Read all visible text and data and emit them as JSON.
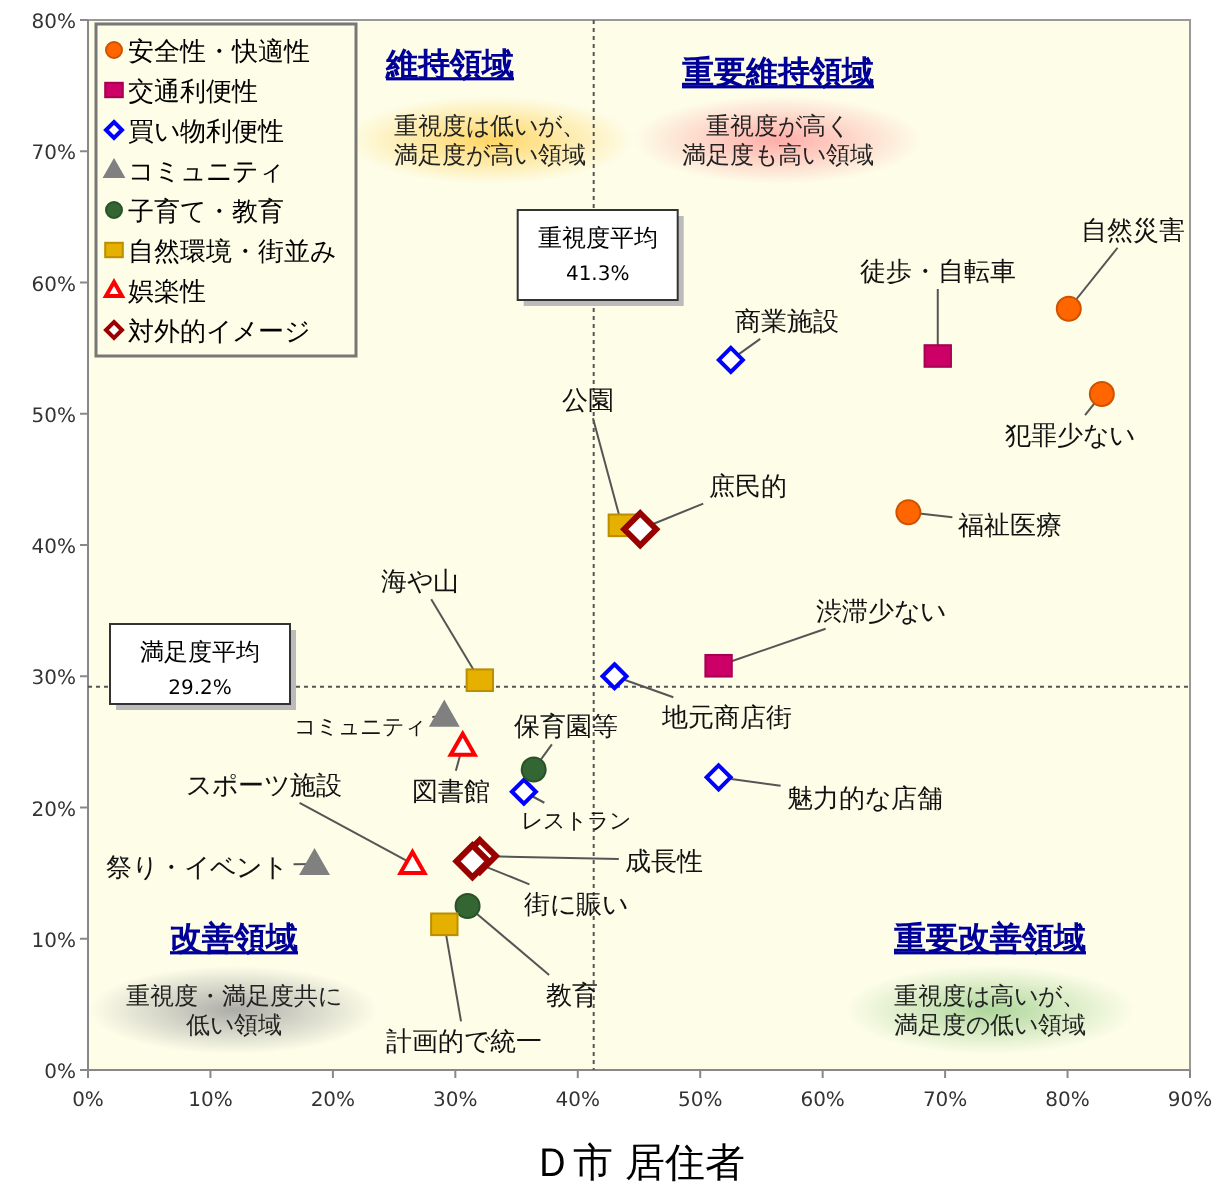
{
  "chart_data": {
    "type": "scatter",
    "xlabel": "Ｄ市 居住者",
    "xlim": [
      0,
      90
    ],
    "ylim": [
      0,
      80
    ],
    "xticks": [
      {
        "value": 0,
        "label": "0%"
      },
      {
        "value": 10,
        "label": "10%"
      },
      {
        "value": 20,
        "label": "20%"
      },
      {
        "value": 30,
        "label": "30%"
      },
      {
        "value": 40,
        "label": "40%"
      },
      {
        "value": 50,
        "label": "50%"
      },
      {
        "value": 60,
        "label": "60%"
      },
      {
        "value": 70,
        "label": "70%"
      },
      {
        "value": 80,
        "label": "80%"
      },
      {
        "value": 90,
        "label": "90%"
      }
    ],
    "yticks": [
      {
        "value": 0,
        "label": "0%"
      },
      {
        "value": 10,
        "label": "10%"
      },
      {
        "value": 20,
        "label": "20%"
      },
      {
        "value": 30,
        "label": "30%"
      },
      {
        "value": 40,
        "label": "40%"
      },
      {
        "value": 50,
        "label": "50%"
      },
      {
        "value": 60,
        "label": "60%"
      },
      {
        "value": 70,
        "label": "70%"
      },
      {
        "value": 80,
        "label": "80%"
      }
    ],
    "grid": false,
    "legend": "top left",
    "series": [
      {
        "name": "安全性・快適性",
        "color": "#ff6600",
        "marker": "circle",
        "x": [
          80.1,
          82.8,
          67.0
        ],
        "values": [
          58.0,
          51.5,
          42.5
        ]
      },
      {
        "name": "交通利便性",
        "color": "#cc0066",
        "marker": "square",
        "x": [
          69.4,
          51.5
        ],
        "values": [
          54.4,
          30.8
        ]
      },
      {
        "name": "買い物利便性",
        "color": "#0000ff",
        "marker": "diamond",
        "x": [
          52.5,
          43.0,
          51.5,
          35.6
        ],
        "values": [
          54.1,
          30.0,
          22.3,
          21.2
        ]
      },
      {
        "name": "コミュニティ",
        "color": "#808080",
        "marker": "triangle",
        "x": [
          29.1,
          18.5
        ],
        "values": [
          27.0,
          15.7
        ]
      },
      {
        "name": "子育て・教育",
        "color": "#336633",
        "marker": "circle",
        "x": [
          36.4,
          31.0
        ],
        "values": [
          22.9,
          12.5
        ]
      },
      {
        "name": "自然環境・街並み",
        "color": "#e6b000",
        "marker": "square",
        "x": [
          43.6,
          32.0,
          29.1
        ],
        "values": [
          41.5,
          29.7,
          11.1
        ]
      },
      {
        "name": "娯楽性",
        "color": "#ff0000",
        "marker": "triangle",
        "x": [
          30.6,
          26.5
        ],
        "values": [
          24.7,
          15.7
        ]
      },
      {
        "name": "対外的イメージ",
        "color": "#990000",
        "marker": "diamond",
        "x": [
          45.1,
          32.0,
          31.4
        ],
        "values": [
          41.2,
          16.3,
          15.9
        ]
      }
    ],
    "ref_lines": [
      {
        "axis": "x",
        "value": 41.3,
        "label": "重視度平均\n41.3%",
        "line_style": "dotted"
      },
      {
        "axis": "y",
        "value": 29.2,
        "label": "満足度平均\n29.2%",
        "line_style": "dotted"
      }
    ],
    "annotations": [
      {
        "text": "自然災害",
        "x": 80.1,
        "y": 58.0
      },
      {
        "text": "犯罪少ない",
        "x": 82.8,
        "y": 51.5
      },
      {
        "text": "福祉医療",
        "x": 67.0,
        "y": 42.5
      },
      {
        "text": "徒歩・自転車",
        "x": 69.4,
        "y": 54.4
      },
      {
        "text": "渋滞少ない",
        "x": 51.5,
        "y": 30.8
      },
      {
        "text": "商業施設",
        "x": 52.5,
        "y": 54.1
      },
      {
        "text": "地元商店街",
        "x": 43.0,
        "y": 30.0
      },
      {
        "text": "魅力的な店舗",
        "x": 51.5,
        "y": 22.3
      },
      {
        "text": "レストラン",
        "x": 35.6,
        "y": 21.2
      },
      {
        "text": "コミュニティ",
        "x": 29.1,
        "y": 27.0
      },
      {
        "text": "祭り・イベント",
        "x": 18.5,
        "y": 15.7
      },
      {
        "text": "保育園等",
        "x": 36.4,
        "y": 22.9
      },
      {
        "text": "教育",
        "x": 31.0,
        "y": 12.5
      },
      {
        "text": "公園",
        "x": 43.6,
        "y": 41.5
      },
      {
        "text": "海や山",
        "x": 32.0,
        "y": 29.7
      },
      {
        "text": "計画的で統一",
        "x": 29.1,
        "y": 11.1
      },
      {
        "text": "図書館",
        "x": 30.6,
        "y": 24.7
      },
      {
        "text": "スポーツ施設",
        "x": 26.5,
        "y": 15.7
      },
      {
        "text": "庶民的",
        "x": 45.1,
        "y": 41.2
      },
      {
        "text": "成長性",
        "x": 32.0,
        "y": 16.3
      },
      {
        "text": "街に賑い",
        "x": 31.4,
        "y": 15.9
      },
      "維持領域",
      "重視度は低いが、満足度が高い領域",
      "重要維持領域",
      "重視度が高く満足度も高い領域",
      "改善領域",
      "重視度・満足度共に低い領域",
      "重要改善領域",
      "重視度は高いが、満足度の低い領域"
    ]
  }
}
